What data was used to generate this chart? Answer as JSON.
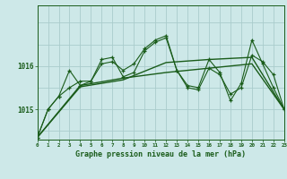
{
  "title": "Graphe pression niveau de la mer (hPa)",
  "bg_color": "#cde8e8",
  "grid_color": "#aacccc",
  "line_color": "#1a5c1a",
  "x_min": 0,
  "x_max": 23,
  "y_min": 1014.3,
  "y_max": 1017.4,
  "ytick_labels": [
    "1015",
    "1016"
  ],
  "ytick_values": [
    1015.0,
    1016.0
  ],
  "series1_y": [
    1014.35,
    1015.0,
    1015.3,
    1015.9,
    1015.55,
    1015.65,
    1016.15,
    1016.2,
    1015.75,
    1015.85,
    1016.35,
    1016.55,
    1016.65,
    1015.9,
    1015.5,
    1015.45,
    1015.95,
    1015.8,
    1015.35,
    1015.5,
    1016.25,
    1016.1,
    1015.8,
    1015.0
  ],
  "series2_y": [
    1014.35,
    1015.0,
    1015.3,
    1015.5,
    1015.65,
    1015.65,
    1016.05,
    1016.1,
    1015.9,
    1016.05,
    1016.4,
    1016.6,
    1016.7,
    1015.9,
    1015.55,
    1015.5,
    1016.15,
    1015.85,
    1015.2,
    1015.6,
    1016.6,
    1016.05,
    1015.5,
    1015.0
  ],
  "series3_x": [
    0,
    4,
    8,
    12,
    16,
    20,
    23
  ],
  "series3_y": [
    1014.35,
    1015.55,
    1015.72,
    1015.85,
    1015.95,
    1016.05,
    1015.0
  ],
  "series4_x": [
    0,
    4,
    8,
    12,
    16,
    20,
    23
  ],
  "series4_y": [
    1014.35,
    1015.52,
    1015.68,
    1016.08,
    1016.15,
    1016.2,
    1015.0
  ]
}
